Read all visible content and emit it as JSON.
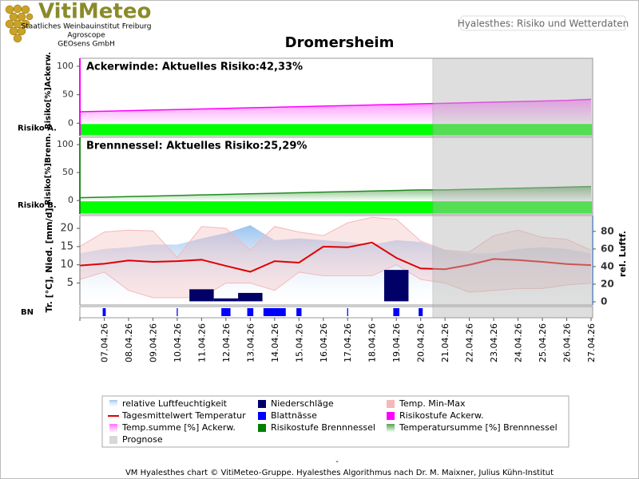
{
  "header": {
    "logo": "VitiMeteo",
    "institutions": [
      "Staatliches Weinbauinstitut Freiburg",
      "Agroscope",
      "GEOsens GmbH"
    ],
    "tab": "Hyalesthes: Risiko und Wetterdaten"
  },
  "title": "Dromersheim",
  "chart_data": [
    {
      "type": "risk",
      "title": "Ackerwinde:  Aktuelles Risiko:42,33%",
      "y_label": "Risiko[%]Ackerw.",
      "level_label": "Risiko A.",
      "ylim": [
        -22,
        114
      ],
      "yticks": [
        0,
        50,
        100
      ],
      "series": [
        {
          "name": "Temp.summe [%] Ackerw.",
          "color": "#ff00ff",
          "values": [
            20,
            21,
            22,
            23,
            24,
            25,
            26,
            27,
            28,
            29,
            30,
            31,
            32,
            33,
            34,
            35,
            36,
            37,
            38,
            39,
            40,
            42
          ]
        }
      ],
      "risk_level": {
        "name": "Risikostufe Ackerw.",
        "color": "#ff00ff"
      },
      "risk_bar_color": "#00ff00"
    },
    {
      "type": "risk",
      "title": "Brennnessel:  Aktuelles Risiko:25,29%",
      "y_label": "Risiko[%]Brenn.",
      "level_label": "Risiko B.",
      "ylim": [
        -24,
        113
      ],
      "yticks": [
        0,
        50,
        100
      ],
      "series": [
        {
          "name": "Temperatursumme [%] Brennnessel",
          "color": "#228b22",
          "values": [
            5,
            6,
            7,
            8,
            9,
            10,
            11,
            12,
            13,
            14,
            15,
            16,
            17,
            18,
            19,
            19,
            20,
            21,
            22,
            23,
            24,
            25
          ]
        }
      ],
      "risk_level": {
        "name": "Risikostufe Brennnessel",
        "color": "#008000"
      },
      "risk_bar_color": "#00ff00"
    },
    {
      "type": "weather",
      "y_label": "Tr. [°C], Nied. [mm/d]",
      "y2_label": "rel. Luftf.",
      "bn_label": "BN",
      "categories": [
        null,
        "07.04.26",
        "08.04.26",
        "09.04.26",
        "10.04.26",
        "11.04.26",
        "12.04.26",
        "13.04.26",
        "14.04.26",
        "15.04.26",
        "16.04.26",
        "17.04.26",
        "18.04.26",
        "19.04.26",
        "20.04.26",
        "21.04.26",
        "22.04.26",
        "23.04.26",
        "24.04.26",
        "25.04.26",
        "26.04.26",
        "27.04.26"
      ],
      "ylim": [
        -1,
        23.5
      ],
      "yticks": [
        5,
        10,
        15,
        20
      ],
      "y2lim": [
        -3.6,
        98
      ],
      "y2ticks": [
        0,
        20,
        40,
        60,
        80
      ],
      "humidity": {
        "name": "relative Luftfeuchtigkeit",
        "color": "#a8c8ec",
        "axis": "y2",
        "values": [
          55,
          60,
          62,
          65,
          65,
          72,
          78,
          87,
          70,
          72,
          70,
          68,
          65,
          70,
          68,
          58,
          55,
          55,
          60,
          62,
          60,
          55
        ]
      },
      "precipitation": {
        "name": "Niederschläge",
        "color": "#000066",
        "values": [
          0,
          0,
          0,
          0,
          0,
          3.3,
          0.8,
          2.3,
          0,
          0,
          0,
          0,
          0,
          8.6,
          0,
          0,
          0,
          0,
          0,
          0,
          0,
          0
        ]
      },
      "temp_range": {
        "name": "Temp. Min-Max",
        "color": "#f4b8b8",
        "low": [
          6,
          8,
          3,
          1,
          1,
          1,
          5,
          5,
          3,
          8,
          7,
          7,
          7,
          10,
          6,
          5,
          2.5,
          3,
          3.5,
          3.5,
          4.5,
          5
        ],
        "high": [
          15,
          19,
          19.5,
          19.3,
          12,
          20.5,
          20,
          14,
          20.5,
          19,
          18,
          21.5,
          23,
          22.5,
          16.5,
          14,
          13.5,
          18,
          19.5,
          17.5,
          17,
          14
        ]
      },
      "temp_mean": {
        "name": "Tagesmittelwert Temperatur",
        "color": "#e00000",
        "values": [
          9.8,
          10.3,
          11.2,
          10.8,
          11,
          11.4,
          9.7,
          8.1,
          11,
          10.6,
          15,
          14.8,
          16.1,
          11.9,
          9,
          8.8,
          10,
          11.6,
          11.3,
          10.8,
          10.2,
          9.9
        ]
      },
      "leaf_wetness": {
        "name": "Blattnässe",
        "color": "#0000ff",
        "values": [
          0,
          3,
          0,
          0,
          1,
          0,
          9,
          6,
          22,
          5,
          0,
          1,
          0,
          6,
          4,
          0,
          0,
          0,
          0,
          0,
          0,
          0
        ]
      }
    }
  ],
  "prognose": {
    "name": "Prognose",
    "color": "#d8d8d8"
  },
  "note": "-",
  "footer": "VM Hyalesthes chart © VitiMeteo-Gruppe. Hyalesthes Algorithmus nach Dr. M. Maixner, Julius Kühn-Institut"
}
